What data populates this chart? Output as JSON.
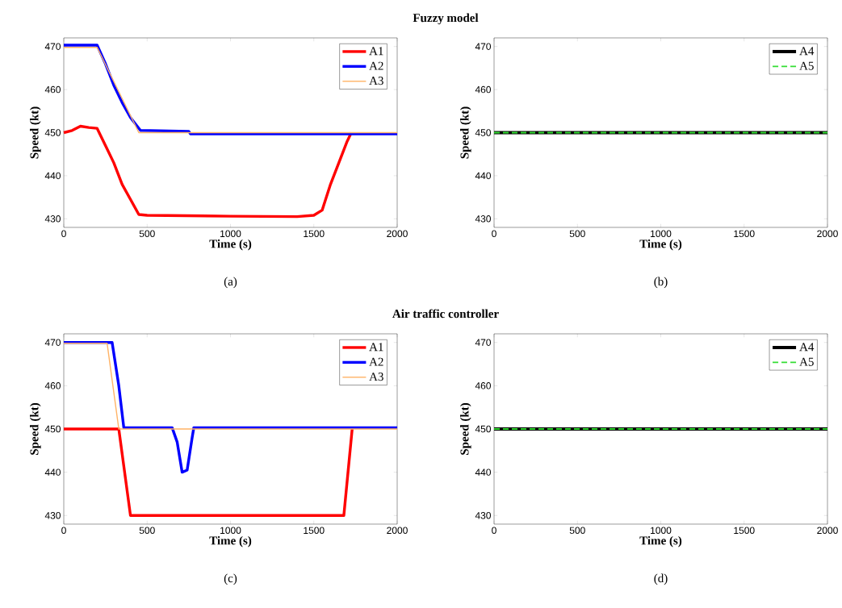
{
  "chart_data": [
    {
      "type": "line",
      "title": "Fuzzy model",
      "xlabel": "Time (s)",
      "ylabel": "Speed (kt)",
      "annotations": [
        "(a)"
      ],
      "xlim": [
        0,
        2000
      ],
      "ylim": [
        428,
        472
      ],
      "xticks": [
        0,
        500,
        1000,
        1500,
        2000
      ],
      "yticks": [
        430,
        440,
        450,
        460,
        470
      ],
      "legend": "top right",
      "series": [
        {
          "name": "A1",
          "color": "#ff0000",
          "x": [
            0,
            50,
            100,
            150,
            200,
            250,
            300,
            350,
            400,
            450,
            500,
            1000,
            1400,
            1500,
            1550,
            1600,
            1650,
            1700,
            1725
          ],
          "values": [
            450,
            450.5,
            451.5,
            451.2,
            451,
            447,
            443,
            438,
            434.5,
            431,
            430.8,
            430.6,
            430.5,
            430.8,
            432,
            438,
            443,
            448,
            450
          ]
        },
        {
          "name": "A2",
          "color": "#0000ff",
          "x": [
            0,
            200,
            250,
            300,
            350,
            400,
            460,
            750,
            760,
            2000
          ],
          "values": [
            470.3,
            470.3,
            466,
            461,
            457,
            453.5,
            450.5,
            450.3,
            449.7,
            449.7
          ]
        },
        {
          "name": "A3",
          "color": "#ffb366",
          "x": [
            0,
            200,
            450,
            2000
          ],
          "values": [
            469.8,
            469.8,
            450,
            450
          ]
        }
      ]
    },
    {
      "type": "line",
      "xlabel": "Time (s)",
      "ylabel": "Speed (kt)",
      "annotations": [
        "(b)"
      ],
      "xlim": [
        0,
        2000
      ],
      "ylim": [
        428,
        472
      ],
      "xticks": [
        0,
        500,
        1000,
        1500,
        2000
      ],
      "yticks": [
        430,
        440,
        450,
        460,
        470
      ],
      "legend": "top right",
      "series": [
        {
          "name": "A4",
          "color": "#000000",
          "x": [
            0,
            2000
          ],
          "values": [
            450,
            450
          ]
        },
        {
          "name": "A5",
          "color": "#33dd33",
          "line_style": "dashed",
          "x": [
            0,
            2000
          ],
          "values": [
            450,
            450
          ]
        }
      ]
    },
    {
      "type": "line",
      "title": "Air traffic controller",
      "xlabel": "Time (s)",
      "ylabel": "Speed (kt)",
      "annotations": [
        "(c)"
      ],
      "xlim": [
        0,
        2000
      ],
      "ylim": [
        428,
        472
      ],
      "xticks": [
        0,
        500,
        1000,
        1500,
        2000
      ],
      "yticks": [
        430,
        440,
        450,
        460,
        470
      ],
      "legend": "top right",
      "series": [
        {
          "name": "A1",
          "color": "#ff0000",
          "x": [
            0,
            330,
            400,
            1680,
            1730
          ],
          "values": [
            450,
            450,
            430,
            430,
            450
          ]
        },
        {
          "name": "A2",
          "color": "#0000ff",
          "x": [
            0,
            290,
            330,
            360,
            650,
            680,
            710,
            740,
            770,
            780,
            2000
          ],
          "values": [
            470,
            470,
            460,
            450.3,
            450.3,
            447,
            440,
            440.5,
            448,
            450.3,
            450.3
          ]
        },
        {
          "name": "A3",
          "color": "#ffb366",
          "x": [
            0,
            260,
            330,
            2000
          ],
          "values": [
            469.8,
            469.8,
            450,
            450
          ]
        }
      ]
    },
    {
      "type": "line",
      "xlabel": "Time (s)",
      "ylabel": "Speed (kt)",
      "annotations": [
        "(d)"
      ],
      "xlim": [
        0,
        2000
      ],
      "ylim": [
        428,
        472
      ],
      "xticks": [
        0,
        500,
        1000,
        1500,
        2000
      ],
      "yticks": [
        430,
        440,
        450,
        460,
        470
      ],
      "legend": "top right",
      "series": [
        {
          "name": "A4",
          "color": "#000000",
          "x": [
            0,
            2000
          ],
          "values": [
            450,
            450
          ]
        },
        {
          "name": "A5",
          "color": "#33dd33",
          "line_style": "dashed",
          "x": [
            0,
            2000
          ],
          "values": [
            450,
            450
          ]
        }
      ]
    }
  ]
}
